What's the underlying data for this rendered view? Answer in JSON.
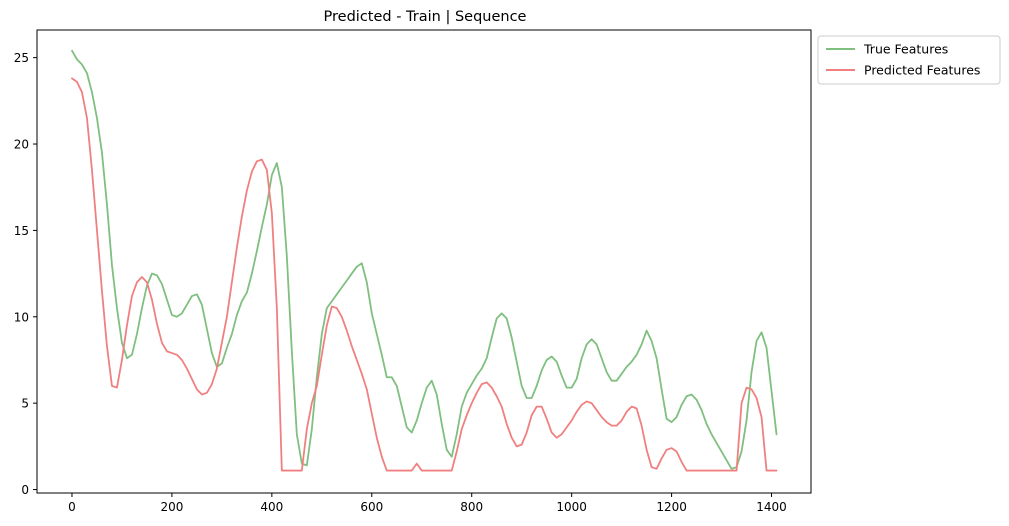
{
  "chart_data": {
    "type": "line",
    "title": "Predicted - Train | Sequence",
    "xlabel": "",
    "ylabel": "",
    "xlim": [
      -70,
      1479
    ],
    "ylim": [
      -0.2,
      26.6
    ],
    "xticks": [
      0,
      200,
      400,
      600,
      800,
      1000,
      1200,
      1400
    ],
    "yticks": [
      0,
      5,
      10,
      15,
      20,
      25
    ],
    "grid": false,
    "legend_position": "outside-top-right",
    "series": [
      {
        "name": "True Features",
        "color": "#7fbf7f",
        "x": [
          0,
          10,
          20,
          30,
          40,
          50,
          60,
          70,
          80,
          90,
          100,
          110,
          120,
          130,
          140,
          150,
          160,
          170,
          180,
          190,
          200,
          210,
          220,
          230,
          240,
          250,
          260,
          270,
          280,
          290,
          300,
          310,
          320,
          330,
          340,
          350,
          360,
          370,
          380,
          390,
          400,
          410,
          420,
          430,
          440,
          450,
          460,
          470,
          480,
          490,
          500,
          510,
          520,
          530,
          540,
          550,
          560,
          570,
          580,
          590,
          600,
          610,
          620,
          630,
          640,
          650,
          660,
          670,
          680,
          690,
          700,
          710,
          720,
          730,
          740,
          750,
          760,
          770,
          780,
          790,
          800,
          810,
          820,
          830,
          840,
          850,
          860,
          870,
          880,
          890,
          900,
          910,
          920,
          930,
          940,
          950,
          960,
          970,
          980,
          990,
          1000,
          1010,
          1020,
          1030,
          1040,
          1050,
          1060,
          1070,
          1080,
          1090,
          1100,
          1110,
          1120,
          1130,
          1140,
          1150,
          1160,
          1170,
          1180,
          1190,
          1200,
          1210,
          1220,
          1230,
          1240,
          1250,
          1260,
          1270,
          1280,
          1290,
          1300,
          1310,
          1320,
          1330,
          1340,
          1350,
          1360,
          1370,
          1380,
          1390,
          1400,
          1410
        ],
        "y": [
          25.4,
          24.9,
          24.6,
          24.1,
          23.0,
          21.5,
          19.5,
          16.5,
          13.0,
          10.5,
          8.5,
          7.6,
          7.8,
          9.0,
          10.5,
          11.8,
          12.5,
          12.4,
          11.9,
          11.0,
          10.1,
          10.0,
          10.2,
          10.7,
          11.2,
          11.3,
          10.7,
          9.3,
          7.9,
          7.1,
          7.3,
          8.2,
          9.0,
          10.1,
          10.9,
          11.4,
          12.5,
          13.8,
          15.2,
          16.5,
          18.2,
          18.9,
          17.5,
          13.5,
          8.0,
          3.2,
          1.5,
          1.4,
          3.5,
          6.5,
          9.0,
          10.5,
          10.9,
          11.3,
          11.7,
          12.1,
          12.5,
          12.9,
          13.1,
          12.0,
          10.2,
          9.0,
          7.8,
          6.5,
          6.5,
          6.0,
          4.8,
          3.6,
          3.3,
          4.0,
          5.0,
          5.9,
          6.3,
          5.5,
          3.8,
          2.3,
          1.9,
          3.2,
          4.8,
          5.6,
          6.1,
          6.6,
          7.0,
          7.6,
          8.8,
          9.9,
          10.2,
          9.9,
          8.8,
          7.4,
          6.0,
          5.3,
          5.3,
          6.0,
          6.9,
          7.5,
          7.7,
          7.4,
          6.6,
          5.9,
          5.9,
          6.4,
          7.6,
          8.4,
          8.7,
          8.4,
          7.6,
          6.8,
          6.3,
          6.3,
          6.7,
          7.1,
          7.4,
          7.8,
          8.4,
          9.2,
          8.6,
          7.6,
          5.8,
          4.1,
          3.9,
          4.2,
          4.9,
          5.4,
          5.5,
          5.2,
          4.6,
          3.8,
          3.2,
          2.7,
          2.2,
          1.7,
          1.2,
          1.3,
          2.2,
          4.0,
          6.8,
          8.6,
          9.1,
          8.2,
          5.7,
          3.2
        ]
      },
      {
        "name": "Predicted Features",
        "color": "#f08080",
        "x": [
          0,
          10,
          20,
          30,
          40,
          50,
          60,
          70,
          80,
          90,
          100,
          110,
          120,
          130,
          140,
          150,
          160,
          170,
          180,
          190,
          200,
          210,
          220,
          230,
          240,
          250,
          260,
          270,
          280,
          290,
          300,
          310,
          320,
          330,
          340,
          350,
          360,
          370,
          380,
          390,
          400,
          410,
          420,
          430,
          440,
          450,
          460,
          470,
          480,
          490,
          500,
          510,
          520,
          530,
          540,
          550,
          560,
          570,
          580,
          590,
          600,
          610,
          620,
          630,
          640,
          650,
          660,
          670,
          680,
          690,
          700,
          710,
          720,
          730,
          740,
          750,
          760,
          770,
          780,
          790,
          800,
          810,
          820,
          830,
          840,
          850,
          860,
          870,
          880,
          890,
          900,
          910,
          920,
          930,
          940,
          950,
          960,
          970,
          980,
          990,
          1000,
          1010,
          1020,
          1030,
          1040,
          1050,
          1060,
          1070,
          1080,
          1090,
          1100,
          1110,
          1120,
          1130,
          1140,
          1150,
          1160,
          1170,
          1180,
          1190,
          1200,
          1210,
          1220,
          1230,
          1240,
          1250,
          1260,
          1270,
          1280,
          1290,
          1300,
          1310,
          1320,
          1330,
          1340,
          1350,
          1360,
          1370,
          1380,
          1390,
          1400,
          1410
        ],
        "y": [
          23.8,
          23.6,
          23.0,
          21.5,
          18.5,
          15.0,
          11.5,
          8.3,
          6.0,
          5.9,
          7.5,
          9.5,
          11.2,
          12.0,
          12.3,
          12.0,
          11.0,
          9.6,
          8.5,
          8.0,
          7.9,
          7.8,
          7.5,
          7.0,
          6.4,
          5.8,
          5.5,
          5.6,
          6.1,
          7.0,
          8.5,
          10.0,
          12.0,
          14.0,
          15.8,
          17.3,
          18.4,
          19.0,
          19.1,
          18.5,
          16.0,
          10.5,
          1.1,
          1.1,
          1.1,
          1.1,
          1.1,
          3.5,
          5.0,
          6.0,
          7.8,
          9.5,
          10.6,
          10.5,
          10.0,
          9.2,
          8.3,
          7.5,
          6.7,
          5.8,
          4.4,
          3.0,
          1.9,
          1.1,
          1.1,
          1.1,
          1.1,
          1.1,
          1.1,
          1.5,
          1.1,
          1.1,
          1.1,
          1.1,
          1.1,
          1.1,
          1.1,
          2.2,
          3.5,
          4.3,
          5.0,
          5.6,
          6.1,
          6.2,
          5.9,
          5.4,
          4.8,
          3.8,
          3.0,
          2.5,
          2.6,
          3.3,
          4.3,
          4.8,
          4.8,
          4.1,
          3.3,
          3.0,
          3.2,
          3.6,
          4.0,
          4.5,
          4.9,
          5.1,
          5.0,
          4.6,
          4.2,
          3.9,
          3.7,
          3.7,
          4.0,
          4.5,
          4.8,
          4.7,
          3.7,
          2.3,
          1.3,
          1.2,
          1.8,
          2.3,
          2.4,
          2.2,
          1.6,
          1.1,
          1.1,
          1.1,
          1.1,
          1.1,
          1.1,
          1.1,
          1.1,
          1.1,
          1.1,
          1.1,
          5.0,
          5.9,
          5.8,
          5.3,
          4.2,
          1.1,
          1.1,
          1.1
        ]
      }
    ]
  }
}
